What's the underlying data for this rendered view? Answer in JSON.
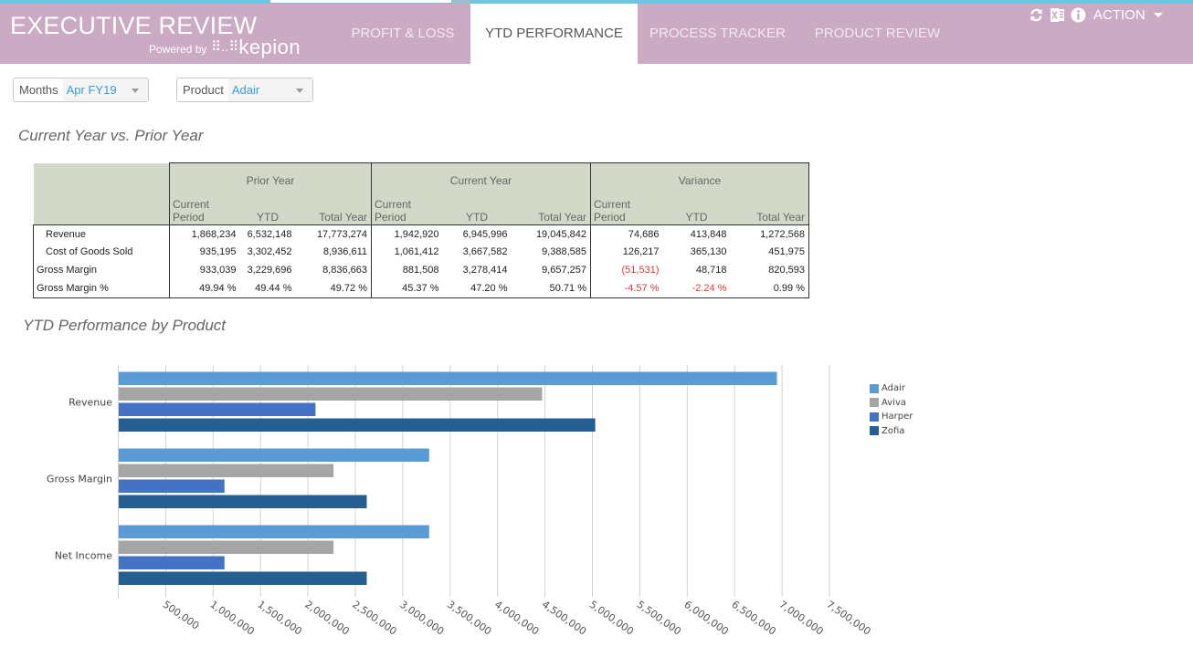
{
  "app": {
    "title": "EXECUTIVE REVIEW",
    "powered_by": "Powered by",
    "vendor": "kepion",
    "vendor_dots": "⠿..⠿"
  },
  "tabs": [
    {
      "label": "PROFIT & LOSS",
      "active": false
    },
    {
      "label": "YTD PERFORMANCE",
      "active": true
    },
    {
      "label": "PROCESS TRACKER",
      "active": false
    },
    {
      "label": "PRODUCT REVIEW",
      "active": false
    }
  ],
  "toolbar": {
    "icons": [
      "refresh-icon",
      "excel-icon",
      "info-icon"
    ],
    "action_label": "ACTION"
  },
  "filters": {
    "months": {
      "label": "Months",
      "value": "Apr FY19"
    },
    "product": {
      "label": "Product",
      "value": "Adair"
    }
  },
  "pl_section": {
    "title": "Current Year vs. Prior Year",
    "groups": [
      "Prior Year",
      "Current Year",
      "Variance"
    ],
    "subheaders": [
      "Current Period",
      "YTD",
      "Total Year"
    ],
    "rows": [
      {
        "label": "Revenue",
        "indent": true,
        "values": [
          "1,868,234",
          "6,532,148",
          "17,773,274",
          "1,942,920",
          "6,945,996",
          "19,045,842",
          "74,686",
          "413,848",
          "1,272,568"
        ],
        "negative": []
      },
      {
        "label": "Cost of Goods Sold",
        "indent": true,
        "values": [
          "935,195",
          "3,302,452",
          "8,936,611",
          "1,061,412",
          "3,667,582",
          "9,388,585",
          "126,217",
          "365,130",
          "451,975"
        ],
        "negative": []
      },
      {
        "label": "Gross Margin",
        "indent": false,
        "values": [
          "933,039",
          "3,229,696",
          "8,836,663",
          "881,508",
          "3,278,414",
          "9,657,257",
          "(51,531)",
          "48,718",
          "820,593"
        ],
        "negative": [
          6
        ]
      },
      {
        "label": "Gross Margin %",
        "indent": false,
        "values": [
          "49.94 %",
          "49.44 %",
          "49.72 %",
          "45.37 %",
          "47.20 %",
          "50.71 %",
          "-4.57 %",
          "-2.24 %",
          "0.99 %"
        ],
        "negative": [
          6,
          7
        ]
      }
    ]
  },
  "chart_section": {
    "title": "YTD Performance by Product"
  },
  "chart_data": {
    "type": "bar",
    "orientation": "horizontal",
    "title": "YTD Performance by Product",
    "categories": [
      "Revenue",
      "Gross Margin",
      "Net Income"
    ],
    "series": [
      {
        "name": "Adair",
        "color": "#5b9bd5",
        "values": [
          6945996,
          3278414,
          3278414
        ]
      },
      {
        "name": "Aviva",
        "color": "#a5a5a5",
        "values": [
          4470000,
          2270000,
          2270000
        ]
      },
      {
        "name": "Harper",
        "color": "#4472c4",
        "values": [
          2080000,
          1120000,
          1120000
        ]
      },
      {
        "name": "Zofia",
        "color": "#255e91",
        "values": [
          5030000,
          2620000,
          2620000
        ]
      }
    ],
    "xlim": [
      0,
      7500000
    ],
    "xticks": [
      500000,
      1000000,
      1500000,
      2000000,
      2500000,
      3000000,
      3500000,
      4000000,
      4500000,
      5000000,
      5500000,
      6000000,
      6500000,
      7000000,
      7500000
    ],
    "xtick_labels": [
      "500,000",
      "1,000,000",
      "1,500,000",
      "2,000,000",
      "2,500,000",
      "3,000,000",
      "3,500,000",
      "4,000,000",
      "4,500,000",
      "5,000,000",
      "5,500,000",
      "6,000,000",
      "6,500,000",
      "7,000,000",
      "7,500,000"
    ],
    "grid": true,
    "legend": "right"
  }
}
